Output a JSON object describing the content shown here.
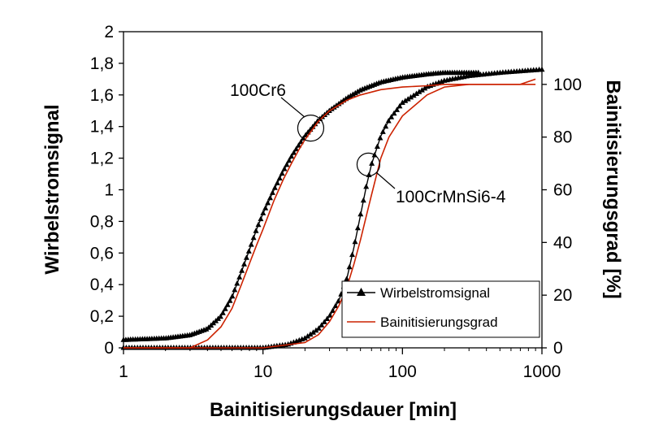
{
  "chart_data": {
    "type": "line",
    "xlabel": "Bainitisierungsdauer [min]",
    "ylabel": "Wirbelstromsignal",
    "y2label": "Bainitisierungsgrad [%]",
    "x_scale": "log",
    "xlim": [
      1,
      1000
    ],
    "ylim": [
      0,
      2
    ],
    "y2lim": [
      0,
      120
    ],
    "x_ticks": [
      1,
      10,
      100,
      1000
    ],
    "x_tick_labels": [
      "1",
      "10",
      "100",
      "1000"
    ],
    "y_ticks": [
      0,
      0.2,
      0.4,
      0.6,
      0.8,
      1.0,
      1.2,
      1.4,
      1.6,
      1.8,
      2.0
    ],
    "y_tick_labels": [
      "0",
      "0,2",
      "0,4",
      "0,6",
      "0,8",
      "1",
      "1,2",
      "1,4",
      "1,6",
      "1,8",
      "2"
    ],
    "y2_ticks": [
      0,
      20,
      40,
      60,
      80,
      100
    ],
    "y2_tick_labels": [
      "0",
      "20",
      "40",
      "60",
      "80",
      "100"
    ],
    "grid": false,
    "legend_position": "bottom-right",
    "annotations": [
      {
        "text": "100Cr6",
        "circle_at": {
          "x": 22,
          "y": 1.39
        }
      },
      {
        "text": "100CrMnSi6-4",
        "circle_at": {
          "x": 57,
          "y": 1.16
        }
      }
    ],
    "series": [
      {
        "name": "Wirbelstromsignal",
        "axis": "left",
        "color": "#000000",
        "marker": "triangle",
        "groups": [
          {
            "label": "100Cr6",
            "x": [
              1,
              2,
              3,
              4,
              5,
              6,
              7,
              8,
              9,
              10,
              12,
              14,
              16,
              18,
              20,
              25,
              30,
              40,
              50,
              70,
              100,
              150,
              200,
              300,
              350
            ],
            "y": [
              0.05,
              0.06,
              0.08,
              0.12,
              0.2,
              0.32,
              0.48,
              0.62,
              0.75,
              0.85,
              1.0,
              1.12,
              1.21,
              1.28,
              1.34,
              1.44,
              1.5,
              1.58,
              1.63,
              1.68,
              1.71,
              1.73,
              1.74,
              1.74,
              1.74
            ]
          },
          {
            "label": "100CrMnSi6-4",
            "x": [
              1,
              10,
              15,
              20,
              25,
              30,
              35,
              40,
              45,
              50,
              55,
              60,
              70,
              80,
              100,
              150,
              200,
              300,
              500,
              700,
              1000
            ],
            "y": [
              0,
              0,
              0.02,
              0.06,
              0.12,
              0.2,
              0.3,
              0.44,
              0.64,
              0.84,
              1.02,
              1.16,
              1.34,
              1.44,
              1.55,
              1.65,
              1.69,
              1.72,
              1.74,
              1.75,
              1.76
            ]
          }
        ]
      },
      {
        "name": "Bainitisierungsgrad",
        "axis": "right",
        "color": "#cc2200",
        "marker": "none",
        "groups": [
          {
            "label": "100Cr6",
            "x": [
              1,
              2,
              3,
              4,
              5,
              6,
              7,
              8,
              9,
              10,
              12,
              14,
              16,
              18,
              20,
              25,
              30,
              40,
              50,
              70,
              100,
              150,
              200,
              300,
              500,
              900
            ],
            "y": [
              0,
              0,
              0,
              3,
              8,
              15,
              24,
              32,
              39,
              45,
              56,
              64,
              70,
              75,
              79,
              86,
              90,
              94,
              96,
              98,
              99,
              99.5,
              100,
              100,
              100,
              100
            ]
          },
          {
            "label": "100CrMnSi6-4",
            "x": [
              1,
              10,
              20,
              25,
              30,
              35,
              40,
              45,
              50,
              55,
              60,
              70,
              80,
              100,
              150,
              200,
              300,
              500,
              700,
              900
            ],
            "y": [
              0,
              0,
              2,
              5,
              10,
              16,
              23,
              32,
              41,
              50,
              58,
              72,
              80,
              88,
              96,
              99,
              100,
              100,
              100,
              102
            ]
          }
        ]
      }
    ]
  }
}
